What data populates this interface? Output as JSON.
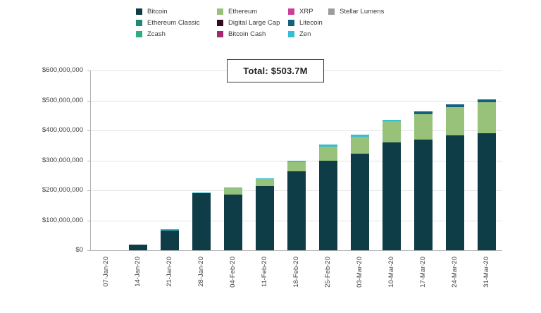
{
  "total_label": "Total: $503.7M",
  "legend": {
    "columns": [
      {
        "items": [
          {
            "label": "Bitcoin",
            "color": "#0f3d47"
          },
          {
            "label": "Ethereum Classic",
            "color": "#1d8a74"
          },
          {
            "label": "Zcash",
            "color": "#2fae85"
          }
        ]
      },
      {
        "items": [
          {
            "label": "Ethereum",
            "color": "#98c27a"
          },
          {
            "label": "Digital Large Cap",
            "color": "#330a1f"
          },
          {
            "label": "Bitcoin Cash",
            "color": "#a8266a"
          }
        ]
      },
      {
        "items": [
          {
            "label": "XRP",
            "color": "#cb3f98"
          },
          {
            "label": "Litecoin",
            "color": "#15607c"
          },
          {
            "label": "Zen",
            "color": "#35bdd4"
          }
        ]
      },
      {
        "items": [
          {
            "label": "Stellar Lumens",
            "color": "#9c9c9c"
          }
        ]
      }
    ]
  },
  "chart_data": {
    "type": "bar",
    "stacked": true,
    "unit": "USD millions",
    "title": "",
    "annotation": "Total: $503.7M",
    "categories": [
      "07-Jan-20",
      "14-Jan-20",
      "21-Jan-20",
      "28-Jan-20",
      "04-Feb-20",
      "11-Feb-20",
      "18-Feb-20",
      "25-Feb-20",
      "03-Mar-20",
      "10-Mar-20",
      "17-Mar-20",
      "24-Mar-20",
      "31-Mar-20"
    ],
    "series": [
      {
        "name": "Bitcoin",
        "color": "#0f3d47",
        "values": [
          0,
          20,
          67,
          190,
          186,
          215,
          263,
          298,
          322,
          360,
          370,
          383,
          391
        ]
      },
      {
        "name": "Ethereum",
        "color": "#98c27a",
        "values": [
          0,
          0,
          0,
          0,
          21,
          22,
          32,
          49,
          57,
          70,
          85,
          94,
          102.7
        ]
      },
      {
        "name": "Zen",
        "color": "#35bdd4",
        "values": [
          0,
          0,
          3,
          4,
          3,
          3,
          4,
          6,
          6,
          6,
          0,
          0,
          0
        ]
      },
      {
        "name": "Litecoin",
        "color": "#15607c",
        "values": [
          0,
          0,
          0,
          0,
          0,
          0,
          0,
          0,
          0,
          0,
          8,
          9,
          10
        ]
      }
    ],
    "totals": [
      0,
      20,
      70,
      194,
      210,
      240,
      299,
      353,
      385,
      436,
      463,
      486,
      503.7
    ],
    "ylabel": "",
    "ylim_usd": [
      0,
      600000000
    ],
    "y_ticks_bottom_to_top": [
      "$0",
      "$100,000,000",
      "$200,000,000",
      "$300,000,000",
      "$400,000,000",
      "$500,000,000",
      "$600,000,000"
    ],
    "grid": true,
    "legend_position": "top"
  }
}
